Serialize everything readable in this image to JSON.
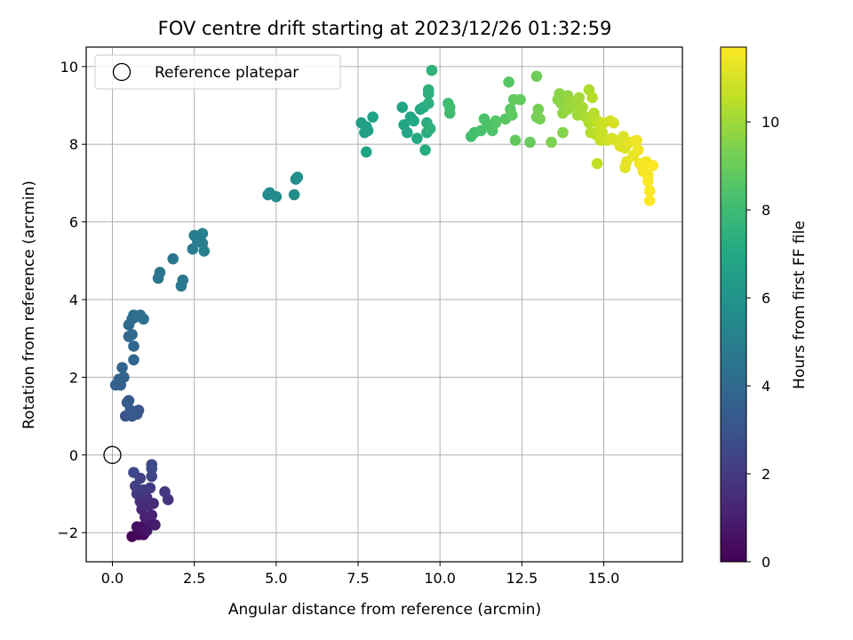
{
  "chart_data": {
    "type": "scatter",
    "title": "FOV centre drift starting at 2023/12/26 01:32:59",
    "xlabel": "Angular distance from reference (arcmin)",
    "ylabel": "Rotation from reference (arcmin)",
    "xlim": [
      -0.8,
      17.4
    ],
    "ylim": [
      -2.75,
      10.5
    ],
    "xticks": [
      0.0,
      2.5,
      5.0,
      7.5,
      10.0,
      12.5,
      15.0
    ],
    "xtick_labels": [
      "0.0",
      "2.5",
      "5.0",
      "7.5",
      "10.0",
      "12.5",
      "15.0"
    ],
    "yticks": [
      -2,
      0,
      2,
      4,
      6,
      8,
      10
    ],
    "ytick_labels": [
      "−2",
      "0",
      "2",
      "4",
      "6",
      "8",
      "10"
    ],
    "grid": true,
    "legend": {
      "location": "top-left",
      "entries": [
        "Reference platepar"
      ]
    },
    "reference_point": {
      "name": "Reference platepar",
      "x": 0.0,
      "y": 0.0
    },
    "colorbar": {
      "label": "Hours from first FF file",
      "colormap": "viridis",
      "range": [
        0,
        11.7
      ],
      "ticks": [
        0,
        2,
        4,
        6,
        8,
        10
      ],
      "tick_labels": [
        "0",
        "2",
        "4",
        "6",
        "8",
        "10"
      ]
    },
    "series": [
      {
        "color_variable": "hours",
        "points": [
          [
            0.6,
            -2.1,
            0.1
          ],
          [
            0.8,
            -2.05,
            0.2
          ],
          [
            0.95,
            -2.05,
            0.3
          ],
          [
            0.75,
            -1.85,
            0.45
          ],
          [
            0.9,
            -1.85,
            0.5
          ],
          [
            1.05,
            -1.95,
            0.65
          ],
          [
            1.15,
            -1.75,
            0.8
          ],
          [
            1.3,
            -1.8,
            0.9
          ],
          [
            1.0,
            -1.6,
            1.05
          ],
          [
            1.2,
            -1.55,
            1.15
          ],
          [
            0.9,
            -1.4,
            1.25
          ],
          [
            1.1,
            -1.3,
            1.35
          ],
          [
            1.25,
            -1.25,
            1.45
          ],
          [
            0.85,
            -1.2,
            1.55
          ],
          [
            1.05,
            -1.1,
            1.65
          ],
          [
            1.7,
            -1.15,
            1.75
          ],
          [
            1.6,
            -0.95,
            1.85
          ],
          [
            0.75,
            -1.0,
            1.9
          ],
          [
            0.95,
            -0.9,
            2.0
          ],
          [
            1.15,
            -0.85,
            2.1
          ],
          [
            0.7,
            -0.8,
            2.2
          ],
          [
            0.85,
            -0.6,
            2.3
          ],
          [
            1.2,
            -0.55,
            2.4
          ],
          [
            0.65,
            -0.45,
            2.5
          ],
          [
            1.2,
            -0.25,
            2.6
          ],
          [
            1.2,
            -0.35,
            2.7
          ],
          [
            0.4,
            1.0,
            3.0
          ],
          [
            0.6,
            1.0,
            3.1
          ],
          [
            0.75,
            1.05,
            3.15
          ],
          [
            0.8,
            1.15,
            3.2
          ],
          [
            0.55,
            1.15,
            3.25
          ],
          [
            0.45,
            1.35,
            3.3
          ],
          [
            0.5,
            1.4,
            3.35
          ],
          [
            0.1,
            1.8,
            3.6
          ],
          [
            0.25,
            1.8,
            3.65
          ],
          [
            0.2,
            1.95,
            3.7
          ],
          [
            0.35,
            2.0,
            3.75
          ],
          [
            0.3,
            2.25,
            3.8
          ],
          [
            0.65,
            2.45,
            3.85
          ],
          [
            0.65,
            2.8,
            3.9
          ],
          [
            0.5,
            3.05,
            3.95
          ],
          [
            0.6,
            3.1,
            4.0
          ],
          [
            0.5,
            3.35,
            4.05
          ],
          [
            0.6,
            3.5,
            4.1
          ],
          [
            0.7,
            3.55,
            4.15
          ],
          [
            0.65,
            3.6,
            4.2
          ],
          [
            0.85,
            3.6,
            4.25
          ],
          [
            0.95,
            3.5,
            4.3
          ],
          [
            1.4,
            4.55,
            4.5
          ],
          [
            1.45,
            4.7,
            4.55
          ],
          [
            1.85,
            5.05,
            4.6
          ],
          [
            2.1,
            4.35,
            4.65
          ],
          [
            2.15,
            4.5,
            4.7
          ],
          [
            2.45,
            5.3,
            4.8
          ],
          [
            2.5,
            5.65,
            4.85
          ],
          [
            2.6,
            5.5,
            4.9
          ],
          [
            2.75,
            5.45,
            4.95
          ],
          [
            2.8,
            5.25,
            5.0
          ],
          [
            2.75,
            5.7,
            5.05
          ],
          [
            4.75,
            6.7,
            5.5
          ],
          [
            4.8,
            6.75,
            5.55
          ],
          [
            5.0,
            6.65,
            5.6
          ],
          [
            5.55,
            6.7,
            5.65
          ],
          [
            5.6,
            7.1,
            5.7
          ],
          [
            5.65,
            7.15,
            5.75
          ],
          [
            7.6,
            8.55,
            6.5
          ],
          [
            7.7,
            8.3,
            6.55
          ],
          [
            7.75,
            8.45,
            6.6
          ],
          [
            7.8,
            8.35,
            6.65
          ],
          [
            7.95,
            8.7,
            6.7
          ],
          [
            7.75,
            7.8,
            6.75
          ],
          [
            8.85,
            8.95,
            6.8
          ],
          [
            8.9,
            8.5,
            6.85
          ],
          [
            9.0,
            8.3,
            6.9
          ],
          [
            9.1,
            8.7,
            6.95
          ],
          [
            9.2,
            8.6,
            7.0
          ],
          [
            9.3,
            8.15,
            7.05
          ],
          [
            9.4,
            8.9,
            7.1
          ],
          [
            9.5,
            8.95,
            7.15
          ],
          [
            9.55,
            7.85,
            7.2
          ],
          [
            9.6,
            8.3,
            7.25
          ],
          [
            9.6,
            8.55,
            7.3
          ],
          [
            9.65,
            9.05,
            7.35
          ],
          [
            9.65,
            9.3,
            7.4
          ],
          [
            9.65,
            9.4,
            7.45
          ],
          [
            9.7,
            8.4,
            7.5
          ],
          [
            9.75,
            9.9,
            7.55
          ],
          [
            10.25,
            9.05,
            8.0
          ],
          [
            10.3,
            8.8,
            8.05
          ],
          [
            10.3,
            8.95,
            8.1
          ],
          [
            10.95,
            8.2,
            8.15
          ],
          [
            11.05,
            8.3,
            8.2
          ],
          [
            11.25,
            8.35,
            8.3
          ],
          [
            11.35,
            8.65,
            8.35
          ],
          [
            11.45,
            8.5,
            8.4
          ],
          [
            11.6,
            8.35,
            8.45
          ],
          [
            11.7,
            8.55,
            8.5
          ],
          [
            11.7,
            8.6,
            8.55
          ],
          [
            12.0,
            8.65,
            8.6
          ],
          [
            12.1,
            9.6,
            8.65
          ],
          [
            12.15,
            8.9,
            8.7
          ],
          [
            12.2,
            8.75,
            8.75
          ],
          [
            12.25,
            9.15,
            8.8
          ],
          [
            12.3,
            8.1,
            8.85
          ],
          [
            12.45,
            9.15,
            8.9
          ],
          [
            12.75,
            8.05,
            9.0
          ],
          [
            12.95,
            9.75,
            9.1
          ],
          [
            12.95,
            8.7,
            9.2
          ],
          [
            13.0,
            8.9,
            9.25
          ],
          [
            13.05,
            8.65,
            9.3
          ],
          [
            13.4,
            8.05,
            9.4
          ],
          [
            13.75,
            8.3,
            9.5
          ],
          [
            13.6,
            9.15,
            9.6
          ],
          [
            13.65,
            9.3,
            9.65
          ],
          [
            13.7,
            9.05,
            9.7
          ],
          [
            13.75,
            8.8,
            9.75
          ],
          [
            13.9,
            9.25,
            9.8
          ],
          [
            13.9,
            8.9,
            9.85
          ],
          [
            14.0,
            9.1,
            9.9
          ],
          [
            14.1,
            9.0,
            9.95
          ],
          [
            14.2,
            8.75,
            10.0
          ],
          [
            14.25,
            9.2,
            10.05
          ],
          [
            14.3,
            8.9,
            10.1
          ],
          [
            14.35,
            8.95,
            10.15
          ],
          [
            14.45,
            8.7,
            10.2
          ],
          [
            14.55,
            9.4,
            10.25
          ],
          [
            14.55,
            8.55,
            10.3
          ],
          [
            14.6,
            8.3,
            10.35
          ],
          [
            14.65,
            9.2,
            10.4
          ],
          [
            14.7,
            8.8,
            10.45
          ],
          [
            14.75,
            8.25,
            10.5
          ],
          [
            14.8,
            8.6,
            10.55
          ],
          [
            14.8,
            7.5,
            10.6
          ],
          [
            14.85,
            8.5,
            10.65
          ],
          [
            14.9,
            8.1,
            10.7
          ],
          [
            14.95,
            8.3,
            10.75
          ],
          [
            15.0,
            8.55,
            10.8
          ],
          [
            15.1,
            8.1,
            10.85
          ],
          [
            15.2,
            8.6,
            10.9
          ],
          [
            15.25,
            8.15,
            10.95
          ],
          [
            15.3,
            8.55,
            11.0
          ],
          [
            15.35,
            8.1,
            11.05
          ],
          [
            15.5,
            7.95,
            11.1
          ],
          [
            15.6,
            8.2,
            11.1
          ],
          [
            15.65,
            7.9,
            11.15
          ],
          [
            15.65,
            7.4,
            11.2
          ],
          [
            15.7,
            7.55,
            11.25
          ],
          [
            15.8,
            8.05,
            11.3
          ],
          [
            15.9,
            7.7,
            11.35
          ],
          [
            16.0,
            8.1,
            11.4
          ],
          [
            16.05,
            7.85,
            11.45
          ],
          [
            16.1,
            7.5,
            11.45
          ],
          [
            16.15,
            7.45,
            11.5
          ],
          [
            16.2,
            7.3,
            11.55
          ],
          [
            16.3,
            7.55,
            11.6
          ],
          [
            16.35,
            7.2,
            11.6
          ],
          [
            16.35,
            7.05,
            11.65
          ],
          [
            16.4,
            6.8,
            11.65
          ],
          [
            16.5,
            7.45,
            11.7
          ],
          [
            16.4,
            6.55,
            11.7
          ]
        ]
      }
    ]
  }
}
